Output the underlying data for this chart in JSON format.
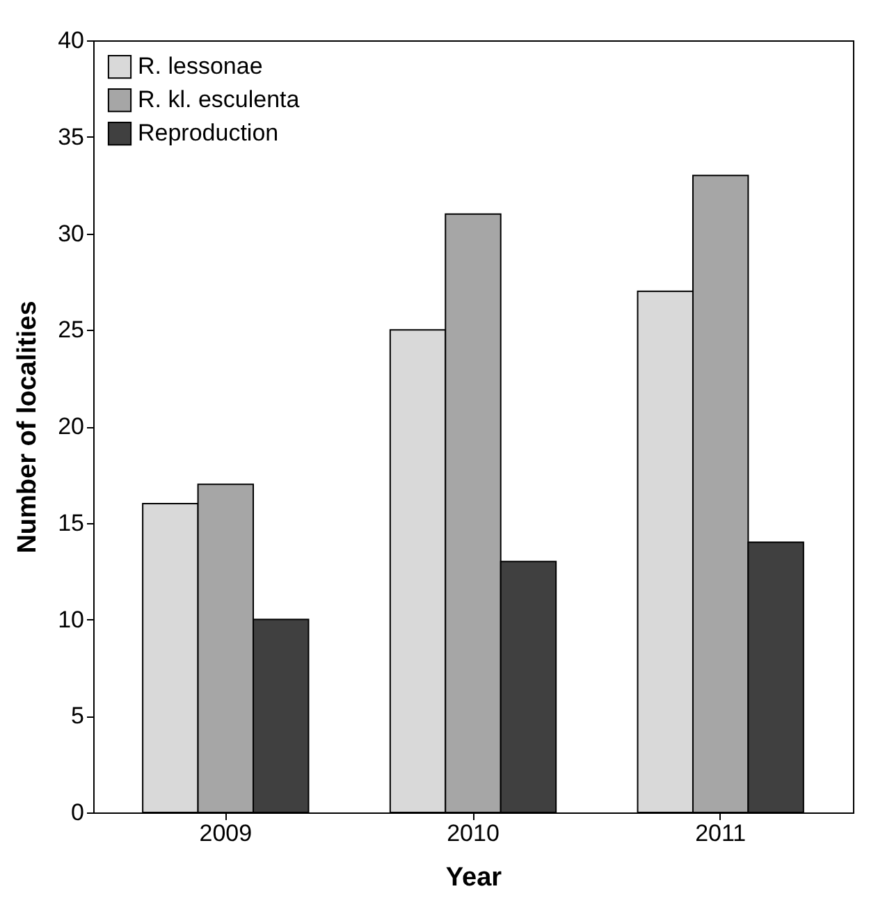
{
  "chart_data": {
    "type": "bar",
    "xlabel": "Year",
    "ylabel": "Number of localities",
    "categories": [
      "2009",
      "2010",
      "2011"
    ],
    "series": [
      {
        "name": "R. lessonae",
        "color": "#d9d9d9",
        "values": [
          16,
          25,
          27
        ]
      },
      {
        "name": "R. kl. esculenta",
        "color": "#a6a6a6",
        "values": [
          17,
          31,
          33
        ]
      },
      {
        "name": "Reproduction",
        "color": "#404040",
        "values": [
          10,
          13,
          14
        ]
      }
    ],
    "ylim": [
      0,
      40
    ],
    "yticks": [
      0,
      5,
      10,
      15,
      20,
      25,
      30,
      35,
      40
    ],
    "grid": false,
    "legend": "top left"
  }
}
